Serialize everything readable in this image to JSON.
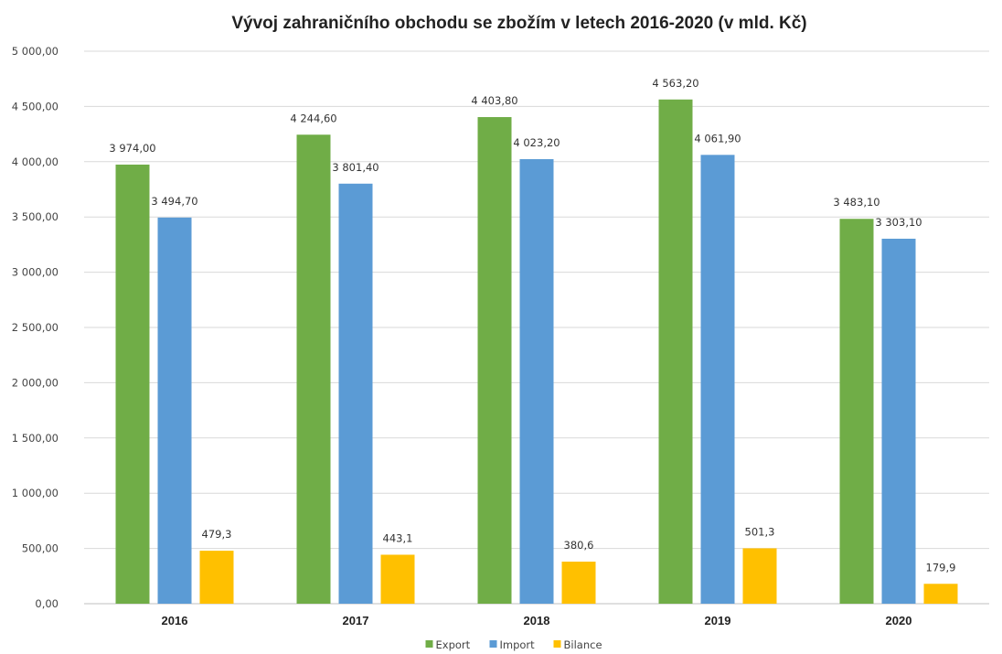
{
  "chart_data": {
    "type": "bar",
    "title": "Vývoj zahraničního obchodu se zbožím v letech 2016-2020 (v mld. Kč)",
    "categories": [
      "2016",
      "2017",
      "2018",
      "2019",
      "2020"
    ],
    "series": [
      {
        "name": "Export",
        "color": "#70ad47",
        "values": [
          3974.0,
          4244.6,
          4403.8,
          4563.2,
          3483.1
        ],
        "labels": [
          "3 974,00",
          "4 244,60",
          "4 403,80",
          "4 563,20",
          "3 483,10"
        ]
      },
      {
        "name": "Import",
        "color": "#5b9bd5",
        "values": [
          3494.7,
          3801.4,
          4023.2,
          4061.9,
          3303.1
        ],
        "labels": [
          "3 494,70",
          "3 801,40",
          "4 023,20",
          "4 061,90",
          "3 303,10"
        ]
      },
      {
        "name": "Bilance",
        "color": "#ffc000",
        "values": [
          479.3,
          443.1,
          380.6,
          501.3,
          179.9
        ],
        "labels": [
          "479,3",
          "443,1",
          "380,6",
          "501,3",
          "179,9"
        ]
      }
    ],
    "ylim": [
      0,
      5000
    ],
    "yticks": [
      0,
      500,
      1000,
      1500,
      2000,
      2500,
      3000,
      3500,
      4000,
      4500,
      5000
    ],
    "ytick_labels": [
      "0,00",
      "500,00",
      "1 000,00",
      "1 500,00",
      "2 000,00",
      "2 500,00",
      "3 000,00",
      "3 500,00",
      "4 000,00",
      "4 500,00",
      "5 000,00"
    ],
    "grid": true,
    "legend": "bottom"
  }
}
